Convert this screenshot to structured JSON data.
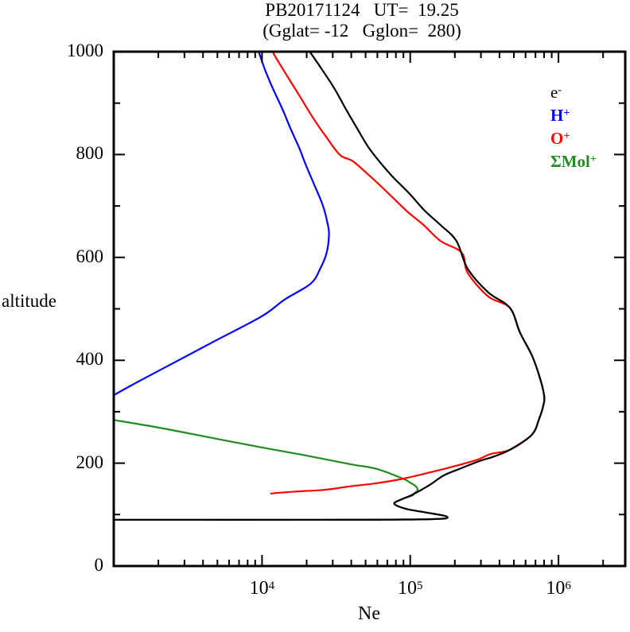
{
  "header": {
    "title_line1": "PB20171124   UT=  19.25",
    "title_line2": "(Gglat= -12   Gglon=  280)"
  },
  "axes": {
    "x": {
      "label": "Ne",
      "scale": "log",
      "tick_labels": [
        {
          "base": "10",
          "exp": "4",
          "value": 10000
        },
        {
          "base": "10",
          "exp": "5",
          "value": 100000
        },
        {
          "base": "10",
          "exp": "6",
          "value": 1000000
        }
      ]
    },
    "y": {
      "label": "altitude",
      "tick_labels": [
        {
          "text": "0",
          "value": 0
        },
        {
          "text": "200",
          "value": 200
        },
        {
          "text": "400",
          "value": 400
        },
        {
          "text": "600",
          "value": 600
        },
        {
          "text": "800",
          "value": 800
        },
        {
          "text": "1000",
          "value": 1000
        }
      ]
    }
  },
  "legend": {
    "items": [
      {
        "text": "e",
        "sup": "-",
        "color": "#000000",
        "bold": false
      },
      {
        "text": "H",
        "sup": "+",
        "color": "#0000ff",
        "bold": true
      },
      {
        "text": "O",
        "sup": "+",
        "color": "#ff0000",
        "bold": true
      },
      {
        "text": "ΣMol",
        "sup": "+",
        "color": "#228b22",
        "bold": true
      }
    ]
  },
  "chart_data": {
    "type": "line",
    "title": "PB20171124 UT= 19.25",
    "subtitle": "(Gglat= -12 Gglon= 280)",
    "xlabel": "Ne",
    "ylabel": "altitude",
    "x_scale": "log",
    "xlim": [
      1000,
      2820000
    ],
    "ylim": [
      0,
      1000
    ],
    "grid": false,
    "legend_position": "inside-top-right",
    "series": [
      {
        "name": "e-",
        "color": "#000000",
        "points": [
          [
            21000,
            1000
          ],
          [
            25600,
            964
          ],
          [
            31000,
            927
          ],
          [
            37000,
            887
          ],
          [
            44000,
            850
          ],
          [
            52000,
            815
          ],
          [
            63000,
            784
          ],
          [
            76000,
            757
          ],
          [
            98000,
            725
          ],
          [
            125000,
            691
          ],
          [
            160000,
            663
          ],
          [
            205000,
            632
          ],
          [
            244000,
            578
          ],
          [
            336000,
            532
          ],
          [
            470000,
            502
          ],
          [
            550000,
            454
          ],
          [
            660000,
            410
          ],
          [
            740000,
            371
          ],
          [
            800000,
            332
          ],
          [
            790000,
            312
          ],
          [
            740000,
            286
          ],
          [
            660000,
            255
          ],
          [
            470000,
            226
          ],
          [
            360000,
            212
          ],
          [
            300000,
            205
          ],
          [
            220000,
            190
          ],
          [
            168000,
            176
          ],
          [
            136000,
            158
          ],
          [
            104000,
            139
          ],
          [
            88000,
            130
          ],
          [
            78000,
            121
          ],
          [
            94000,
            111
          ],
          [
            128000,
            104
          ],
          [
            177000,
            96
          ],
          [
            136000,
            91
          ],
          [
            24000,
            90
          ],
          [
            1000,
            90
          ]
        ]
      },
      {
        "name": "H+",
        "color": "#0000ff",
        "points": [
          [
            9500,
            1000
          ],
          [
            10500,
            964
          ],
          [
            11900,
            927
          ],
          [
            13800,
            887
          ],
          [
            15600,
            850
          ],
          [
            17700,
            815
          ],
          [
            19500,
            784
          ],
          [
            22000,
            748
          ],
          [
            25600,
            703
          ],
          [
            27600,
            668
          ],
          [
            28300,
            645
          ],
          [
            27300,
            609
          ],
          [
            24700,
            578
          ],
          [
            21300,
            549
          ],
          [
            14200,
            518
          ],
          [
            9900,
            485
          ],
          [
            4700,
            436
          ],
          [
            2350,
            390
          ],
          [
            1310,
            351
          ],
          [
            1000,
            332
          ]
        ]
      },
      {
        "name": "O+",
        "color": "#ff0000",
        "points": [
          [
            11900,
            1000
          ],
          [
            12200,
            992
          ],
          [
            14700,
            954
          ],
          [
            18100,
            912
          ],
          [
            22000,
            872
          ],
          [
            27000,
            835
          ],
          [
            33600,
            799
          ],
          [
            41000,
            787
          ],
          [
            54000,
            757
          ],
          [
            71000,
            725
          ],
          [
            94000,
            691
          ],
          [
            123000,
            663
          ],
          [
            160000,
            632
          ],
          [
            223000,
            609
          ],
          [
            244000,
            570
          ],
          [
            336000,
            524
          ],
          [
            470000,
            502
          ],
          [
            550000,
            454
          ],
          [
            660000,
            410
          ],
          [
            740000,
            371
          ],
          [
            800000,
            332
          ],
          [
            790000,
            312
          ],
          [
            740000,
            286
          ],
          [
            660000,
            255
          ],
          [
            470000,
            226
          ],
          [
            350000,
            218
          ],
          [
            286000,
            207
          ],
          [
            205000,
            195
          ],
          [
            136000,
            182
          ],
          [
            90500,
            170
          ],
          [
            59400,
            161
          ],
          [
            39500,
            155
          ],
          [
            26300,
            148
          ],
          [
            17300,
            145
          ],
          [
            11500,
            141
          ]
        ]
      },
      {
        "name": "ΣMol+",
        "color": "#228b22",
        "points": [
          [
            1000,
            284
          ],
          [
            2020,
            269
          ],
          [
            4250,
            251
          ],
          [
            8950,
            233
          ],
          [
            18800,
            216
          ],
          [
            39500,
            198
          ],
          [
            59000,
            189
          ],
          [
            89000,
            170
          ],
          [
            100000,
            162
          ],
          [
            109000,
            155
          ],
          [
            112000,
            147
          ],
          [
            106000,
            141
          ],
          [
            103000,
            137
          ],
          [
            88000,
            130
          ],
          [
            78000,
            121
          ],
          [
            94000,
            111
          ],
          [
            128000,
            104
          ],
          [
            177000,
            96
          ],
          [
            136000,
            91
          ],
          [
            24000,
            90
          ],
          [
            1000,
            90
          ]
        ]
      }
    ]
  }
}
